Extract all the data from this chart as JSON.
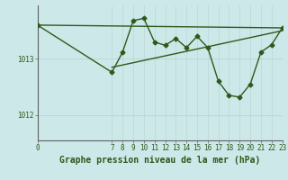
{
  "title": "Graphe pression niveau de la mer (hPa)",
  "bg_color": "#cce8e8",
  "line_color": "#2d5a1b",
  "grid_color_h": "#b8d4d4",
  "grid_color_v": "#c0d4d4",
  "axis_color": "#606060",
  "x_ticks": [
    0,
    7,
    8,
    9,
    10,
    11,
    12,
    13,
    14,
    15,
    16,
    17,
    18,
    19,
    20,
    21,
    22,
    23
  ],
  "y_ticks": [
    1012,
    1013
  ],
  "ylim": [
    1011.55,
    1013.95
  ],
  "xlim": [
    0,
    23
  ],
  "data_x": [
    0,
    7,
    8,
    9,
    10,
    11,
    12,
    13,
    14,
    15,
    16,
    17,
    18,
    19,
    20,
    21,
    22,
    23
  ],
  "data_y": [
    1013.6,
    1012.76,
    1013.12,
    1013.68,
    1013.72,
    1013.3,
    1013.24,
    1013.36,
    1013.2,
    1013.4,
    1013.2,
    1012.6,
    1012.35,
    1012.32,
    1012.55,
    1013.12,
    1013.25,
    1013.55
  ],
  "trend_x": [
    0,
    23
  ],
  "trend_y": [
    1013.6,
    1013.55
  ],
  "trend2_x": [
    7,
    23
  ],
  "trend2_y": [
    1012.85,
    1013.5
  ],
  "marker_size": 2.5,
  "line_width": 1.0,
  "title_fontsize": 7,
  "tick_fontsize": 5.5
}
